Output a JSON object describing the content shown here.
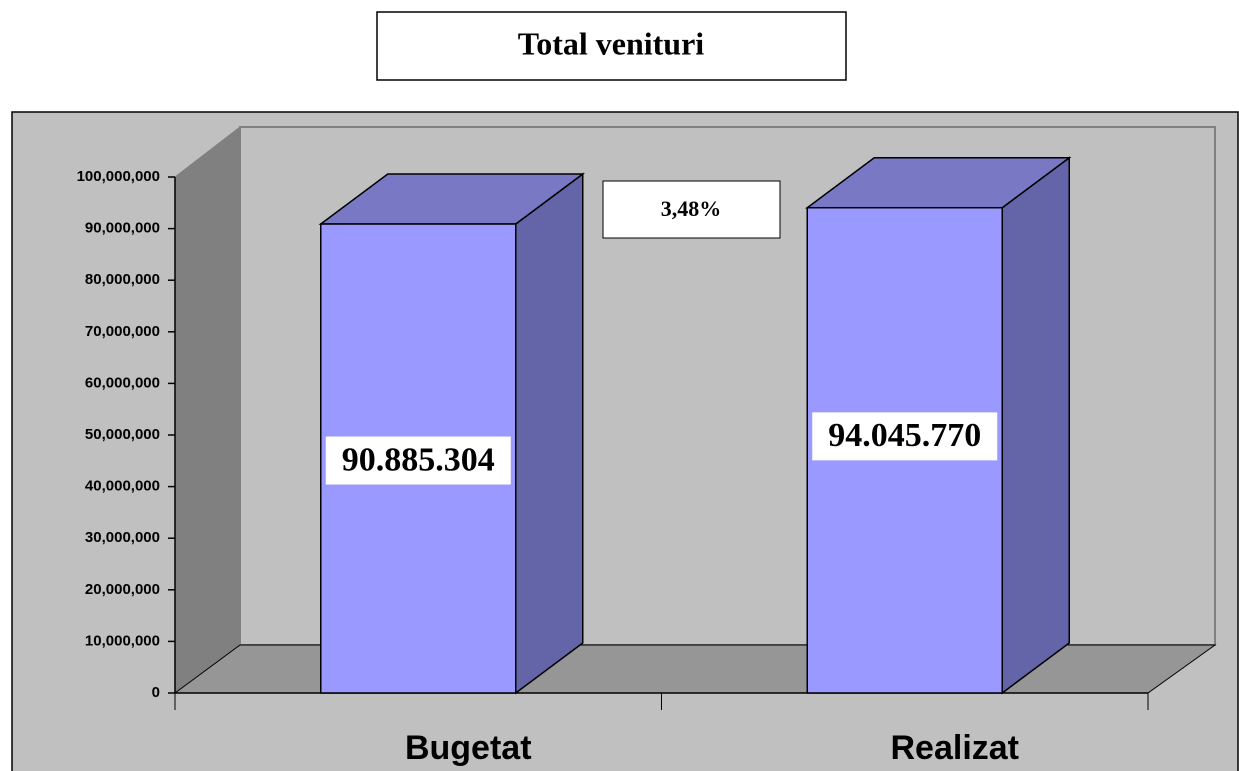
{
  "chart_data": {
    "type": "bar3d",
    "title": "Total venituri",
    "categories": [
      "Bugetat",
      "Realizat"
    ],
    "values": [
      90885304,
      94045770
    ],
    "value_labels": [
      "90.885.304",
      "94.045.770"
    ],
    "annotation": "3,48%",
    "color": "#9999ff",
    "ylim": [
      0,
      100000000
    ],
    "yticks": [
      0,
      {
        "value": 10000000,
        "label": "10,000,000"
      },
      {
        "value": 20000000,
        "label": "20,000,000"
      },
      {
        "value": 30000000,
        "label": "30,000,000"
      },
      {
        "value": 40000000,
        "label": "40,000,000"
      },
      {
        "value": 50000000,
        "label": "50,000,000"
      },
      {
        "value": 60000000,
        "label": "60,000,000"
      },
      {
        "value": 70000000,
        "label": "70,000,000"
      },
      {
        "value": 80000000,
        "label": "80,000,000"
      },
      {
        "value": 90000000,
        "label": "90,000,000"
      },
      {
        "value": 100000000,
        "label": "100,000,000"
      }
    ]
  }
}
